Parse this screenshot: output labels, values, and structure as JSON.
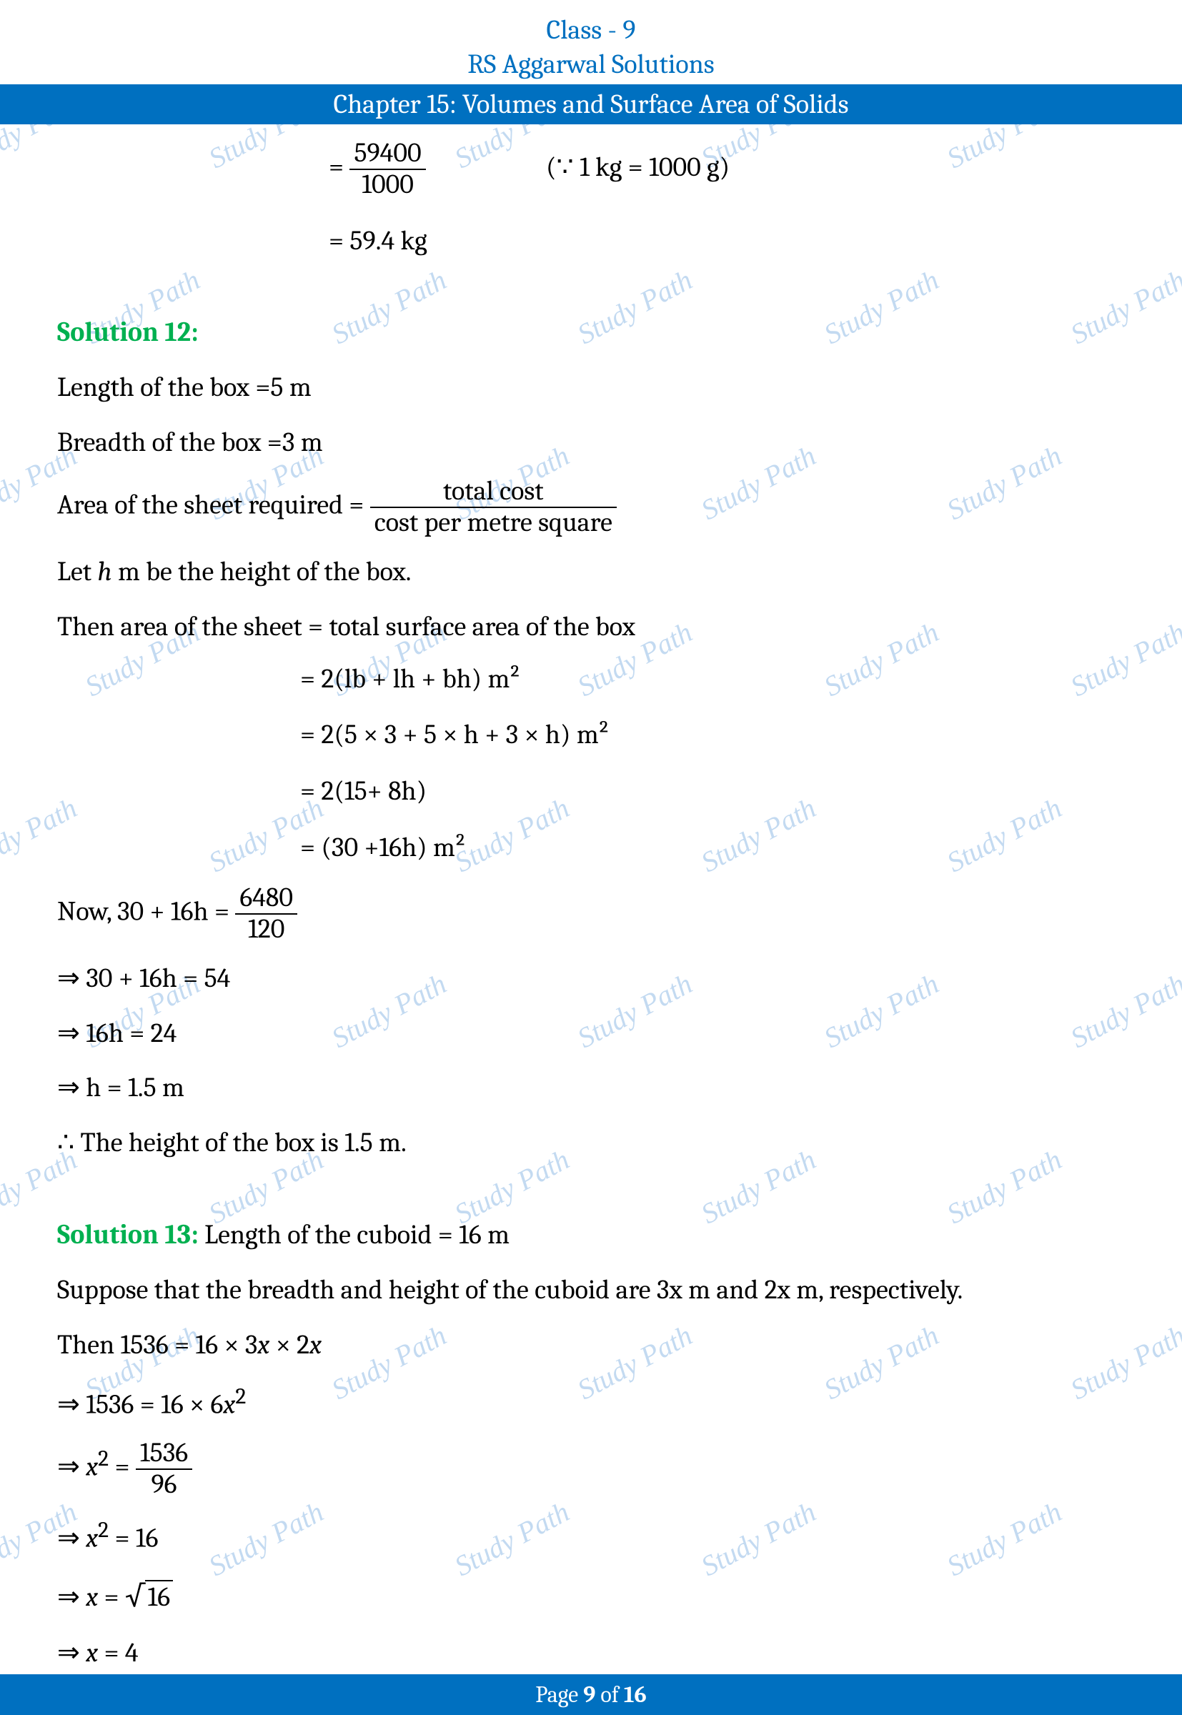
{
  "header": {
    "line1": "Class - 9",
    "line2": "RS Aggarwal Solutions",
    "banner": "Chapter 15: Volumes and Surface Area of Solids"
  },
  "sol11": {
    "eq1_lhs": "=",
    "eq1_num": "59400",
    "eq1_den": "1000",
    "eq1_annot": "(∵ 1 kg  =  1000 g)",
    "eq2": "= 59.4 kg"
  },
  "sol12": {
    "title": "Solution 12:",
    "l1": "Length of the box =5 m",
    "l2": "Breadth of the box =3 m",
    "l3_lhs": "Area of the sheet required =",
    "l3_num": "total cost",
    "l3_den": "cost per metre square",
    "l4_a": "Let ",
    "l4_b": "h",
    "l4_c": " m be the height of the box.",
    "l5": "Then area of the sheet = total surface area of the box",
    "l6": "= 2(lb + lh + bh) m²",
    "l7": "= 2(5 × 3 + 5 × h + 3 × h) m²",
    "l8": "= 2(15+ 8h)",
    "l9": "= (30 +16h) m²",
    "l10_lhs": "Now, 30 + 16h =",
    "l10_num": "6480",
    "l10_den": "120",
    "l11": "⇒ 30 + 16h = 54",
    "l12": "⇒ 16h = 24",
    "l13": "⇒ h = 1.5 m",
    "l14": "∴ The height of the box is 1.5 m."
  },
  "sol13": {
    "title": "Solution 13:",
    "l1": " Length of the cuboid = 16 m",
    "l2": "Suppose that the breadth and height of the cuboid are 3x m and 2x m, respectively.",
    "l3_a": "Then 1536 = 16 × 3",
    "l3_b": "x",
    "l3_c": " × 2",
    "l3_d": "x",
    "l4_a": "⇒ 1536 = 16 × 6",
    "l4_b": "x",
    "l4_sup": "2",
    "l5_a": "⇒ ",
    "l5_b": "x",
    "l5_sup": "2",
    "l5_c": " =",
    "l5_num": "1536",
    "l5_den": "96",
    "l6_a": "⇒ ",
    "l6_b": "x",
    "l6_sup": "2",
    "l6_c": " = 16",
    "l7_a": "⇒ ",
    "l7_b": "x",
    "l7_c": " = ",
    "l7_root": "16",
    "l8_a": "⇒ ",
    "l8_b": "x",
    "l8_c": " = 4"
  },
  "footer": {
    "pre": "Page ",
    "num": "9",
    "post": " of ",
    "total": "16"
  },
  "watermark": {
    "text": "Study Path"
  }
}
